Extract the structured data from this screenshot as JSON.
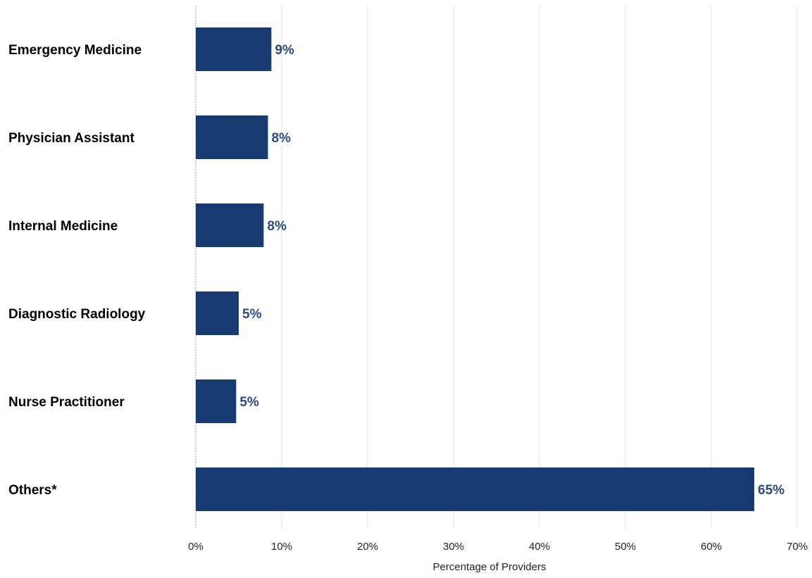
{
  "chart_data": {
    "type": "bar",
    "orientation": "horizontal",
    "categories": [
      "Emergency Medicine",
      "Physician Assistant",
      "Internal Medicine",
      "Diagnostic Radiology",
      "Nurse Practitioner",
      "Others*"
    ],
    "values": [
      8.8,
      8.4,
      7.9,
      5.0,
      4.7,
      65.0
    ],
    "value_labels": [
      "9%",
      "8%",
      "8%",
      "5%",
      "5%",
      "65%"
    ],
    "xlabel": "Percentage of Providers",
    "ylabel": "",
    "xlim": [
      0,
      70
    ],
    "xticks": [
      0,
      10,
      20,
      30,
      40,
      50,
      60,
      70
    ],
    "xtick_labels": [
      "0%",
      "10%",
      "20%",
      "30%",
      "40%",
      "50%",
      "60%",
      "70%"
    ],
    "grid": "vertical",
    "legend": "none"
  },
  "colors": {
    "bar": "#173a70",
    "value_label": "#2b4a80",
    "grid": "#e6e6e6",
    "zero_line": "#9a9a9a"
  }
}
